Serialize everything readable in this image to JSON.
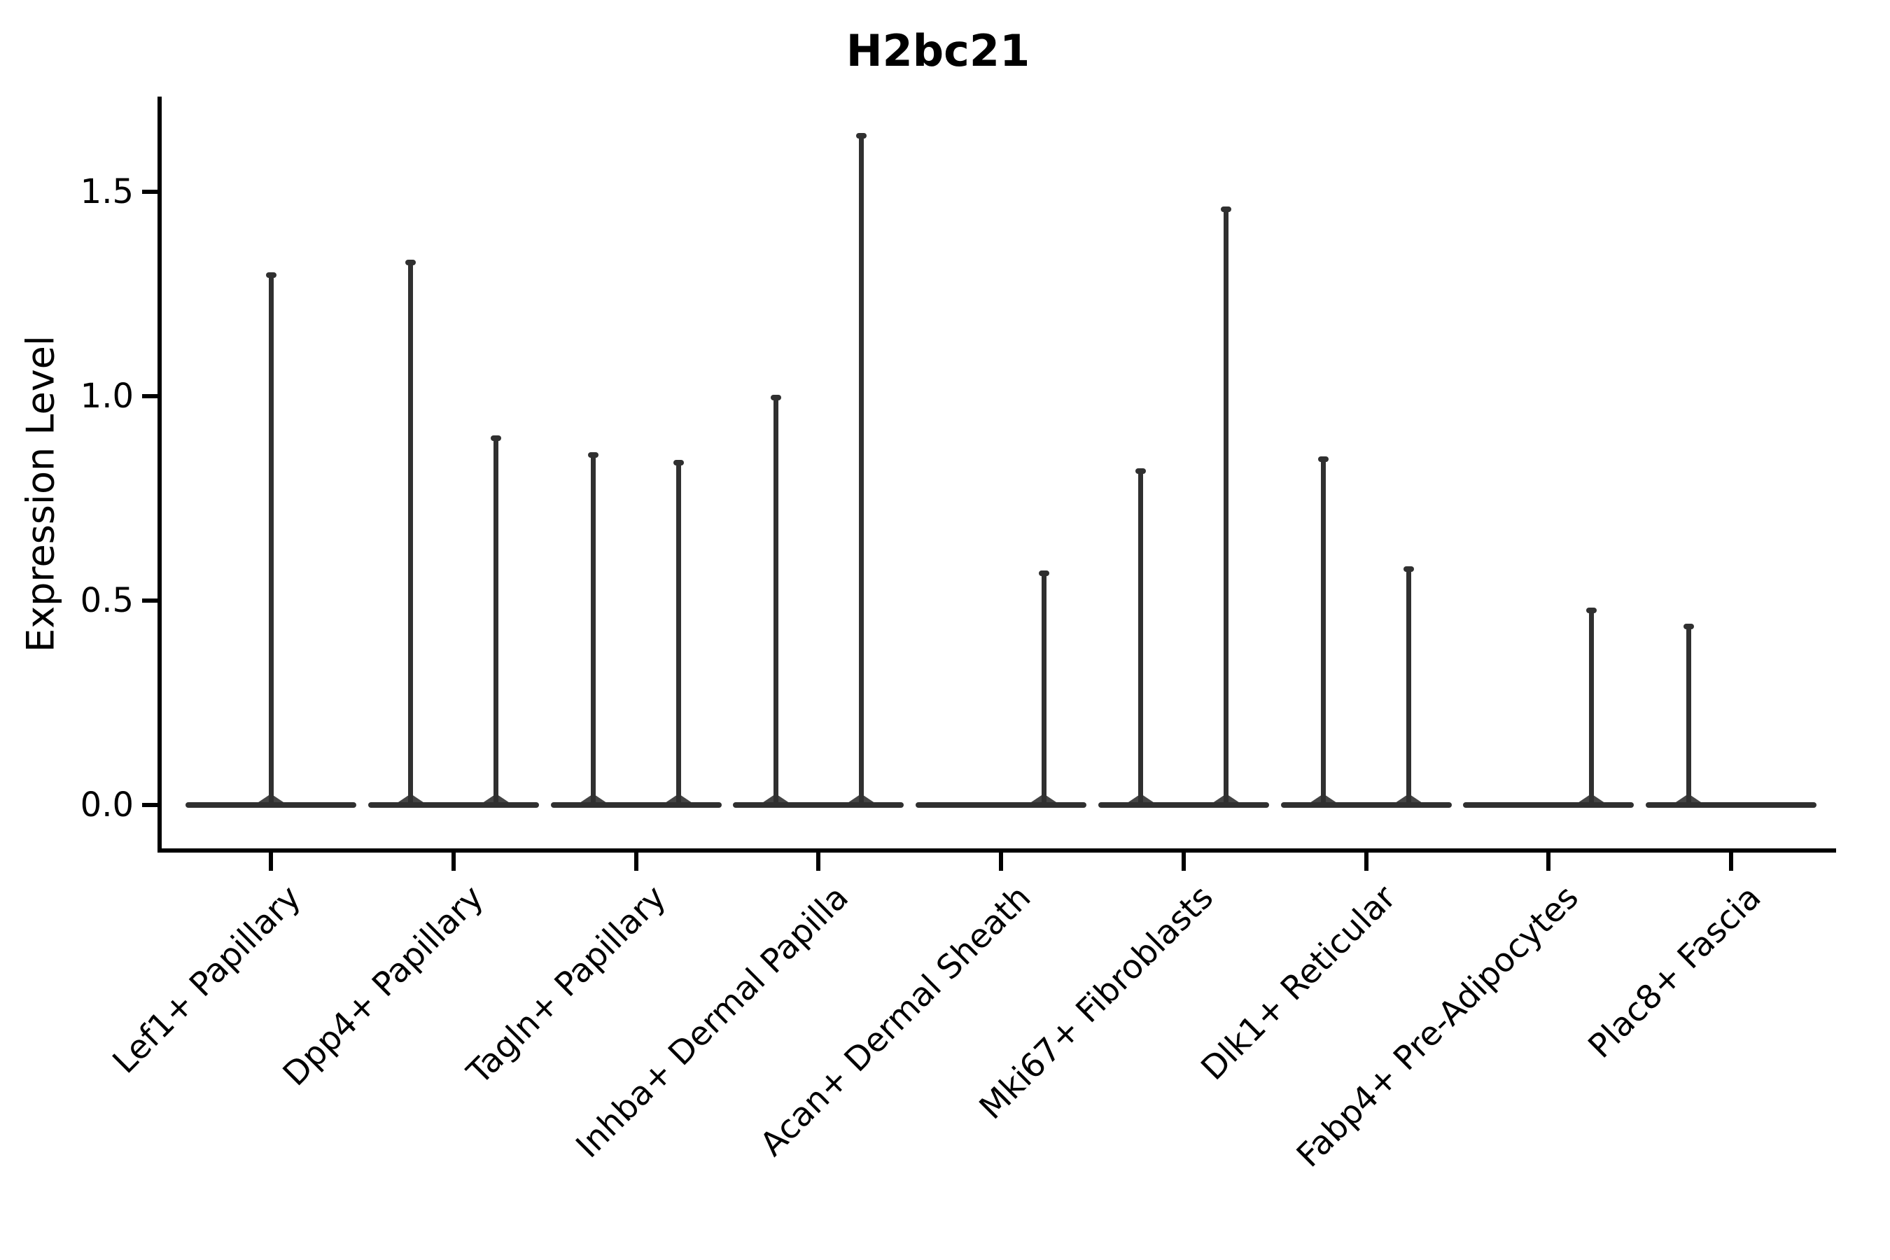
{
  "title": "H2bc21",
  "y_axis": {
    "label": "Expression Level",
    "tick_labels": [
      "0.0",
      "0.5",
      "1.0",
      "1.5"
    ]
  },
  "chart_data": {
    "type": "violin",
    "title": "H2bc21",
    "xlabel": "",
    "ylabel": "Expression Level",
    "ylim": [
      0.0,
      1.73
    ],
    "yticks": [
      0.0,
      0.5,
      1.0,
      1.5
    ],
    "grid": false,
    "legend": "none",
    "background": "#ffffff",
    "line_color": "#303030",
    "axis_color": "#000000",
    "categories": [
      "Lef1+ Papillary",
      "Dpp4+ Papillary",
      "Tagln+ Papillary",
      "Inhba+ Dermal Papilla",
      "Acan+ Dermal Sheath",
      "Mki67+ Fibroblasts",
      "Dlk1+ Reticular",
      "Fabp4+ Pre-Adipocytes",
      "Plac8+ Fascia"
    ],
    "series": [
      {
        "category": "Lef1+ Papillary",
        "baseline_value": 0.0,
        "spikes": [
          {
            "side": "center",
            "max_expression": 1.3
          }
        ]
      },
      {
        "category": "Dpp4+ Papillary",
        "baseline_value": 0.0,
        "spikes": [
          {
            "side": "left",
            "max_expression": 1.33
          },
          {
            "side": "right",
            "max_expression": 0.9
          }
        ]
      },
      {
        "category": "Tagln+ Papillary",
        "baseline_value": 0.0,
        "spikes": [
          {
            "side": "left",
            "max_expression": 0.86
          },
          {
            "side": "right",
            "max_expression": 0.84
          }
        ]
      },
      {
        "category": "Inhba+ Dermal Papilla",
        "baseline_value": 0.0,
        "spikes": [
          {
            "side": "left",
            "max_expression": 1.0
          },
          {
            "side": "right",
            "max_expression": 1.64
          }
        ]
      },
      {
        "category": "Acan+ Dermal Sheath",
        "baseline_value": 0.0,
        "spikes": [
          {
            "side": "right",
            "max_expression": 0.57
          }
        ]
      },
      {
        "category": "Mki67+ Fibroblasts",
        "baseline_value": 0.0,
        "spikes": [
          {
            "side": "left",
            "max_expression": 0.82
          },
          {
            "side": "right",
            "max_expression": 1.46
          }
        ]
      },
      {
        "category": "Dlk1+ Reticular",
        "baseline_value": 0.0,
        "spikes": [
          {
            "side": "left",
            "max_expression": 0.85
          },
          {
            "side": "right",
            "max_expression": 0.58
          }
        ]
      },
      {
        "category": "Fabp4+ Pre-Adipocytes",
        "baseline_value": 0.0,
        "spikes": [
          {
            "side": "right",
            "max_expression": 0.48
          }
        ]
      },
      {
        "category": "Plac8+ Fascia",
        "baseline_value": 0.0,
        "spikes": [
          {
            "side": "left",
            "max_expression": 0.44
          }
        ]
      }
    ]
  }
}
